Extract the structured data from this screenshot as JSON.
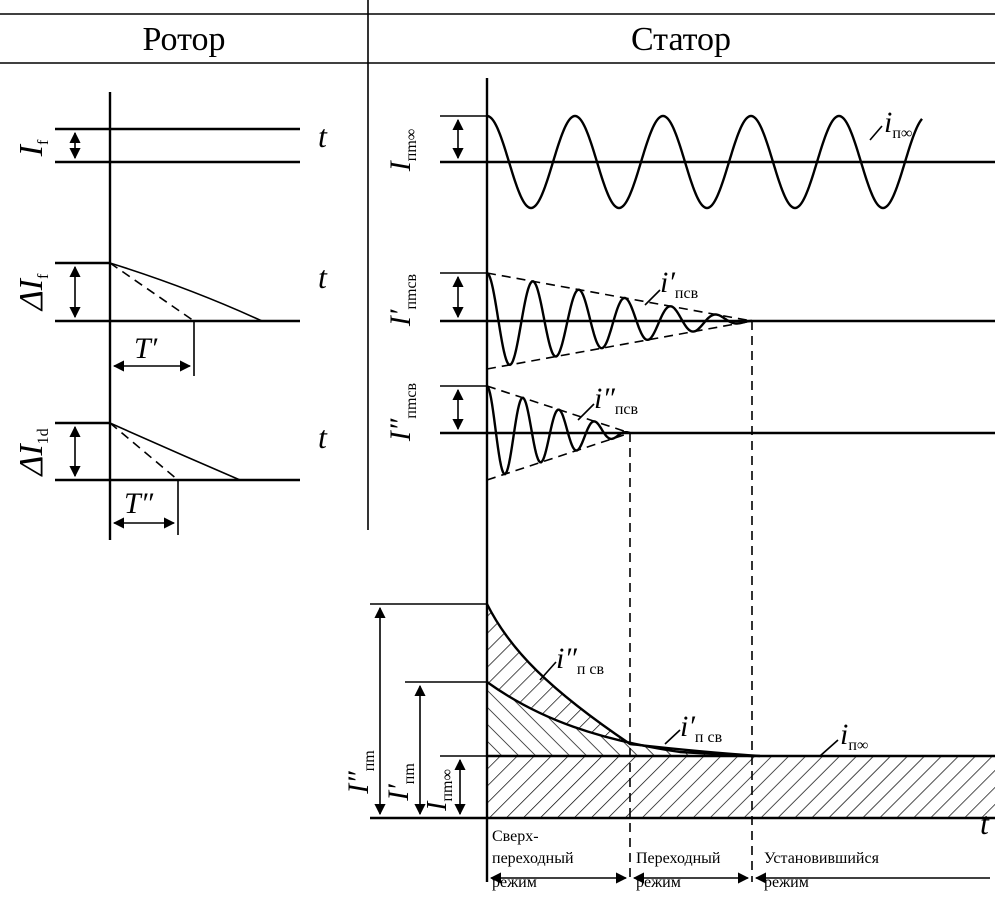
{
  "header": {
    "rotor": "Ротор",
    "stator": "Статор"
  },
  "rotor": {
    "if_label": "I",
    "if_sub": "f",
    "dif_label": "ΔI",
    "dif_sub": "f",
    "di1d_label": "ΔI",
    "di1d_sub": "1d",
    "t_label": "t",
    "tprime": "T′",
    "tdprime": "T″"
  },
  "stator": {
    "inm_inf_label": "I",
    "inm_inf_sub": "пm∞",
    "inm_sv1_label": "I′",
    "inm_sv1_sub": "пmсв",
    "inm_sv2_label": "I″",
    "inm_sv2_sub": "пmсв",
    "i_inf": "i",
    "i_inf_sub": "п∞",
    "i_sv1": "i′",
    "i_sv1_sub": "псв",
    "i_sv2": "i″",
    "i_sv2_sub": "псв"
  },
  "envelope": {
    "i_sv2": "i″",
    "i_sv2_sub": "п св",
    "i_sv1": "i′",
    "i_sv1_sub": "п св",
    "i_inf": "i",
    "i_inf_sub": "п∞",
    "y_inm2": "I″",
    "y_inm2_sub": "пm",
    "y_inm1": "I′",
    "y_inm1_sub": "пm",
    "y_inm_inf": "I",
    "y_inm_inf_sub": "пm∞",
    "t_label": "t"
  },
  "regimes": {
    "supertransient_line1": "Сверх-",
    "supertransient_line2": "переходный",
    "supertransient_line3": "режим",
    "transient_line1": "Переходный",
    "transient_line2": "режим",
    "steady_line1": "Установившийся",
    "steady_line2": "режим"
  }
}
